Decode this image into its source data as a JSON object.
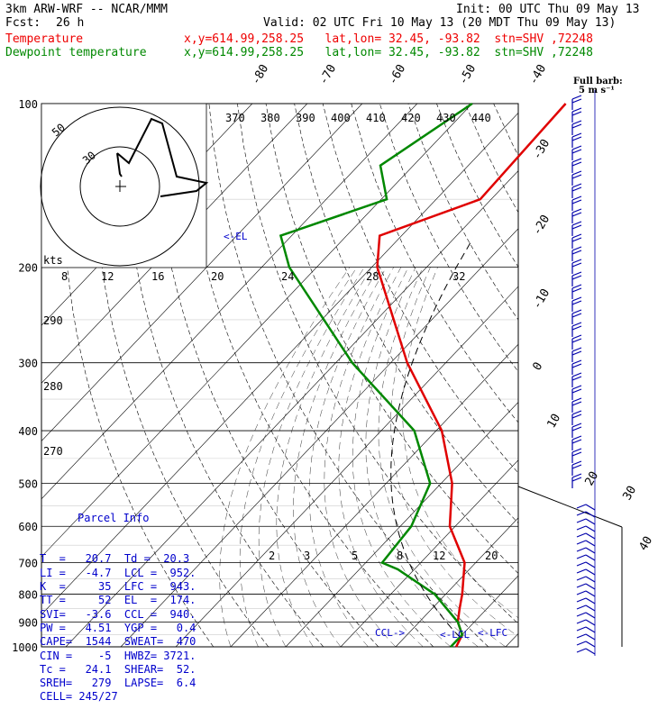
{
  "header": {
    "model": "3km ARW-WRF -- NCAR/MMM",
    "init": "Init: 00 UTC Thu 09 May 13",
    "fcst_label": "Fcst:",
    "fcst_value": "26 h",
    "valid": "Valid: 02 UTC Fri 10 May 13 (20 MDT Thu 09 May 13)",
    "temp_label": "Temperature",
    "temp_info": "x,y=614.99,258.25   lat,lon= 32.45, -93.82  stn=SHV ,72248",
    "dew_label": "Dewpoint temperature",
    "dew_info": "x,y=614.99,258.25   lat,lon= 32.45, -93.82  stn=SHV ,72248"
  },
  "colors": {
    "temperature": "#e00000",
    "dewpoint": "#008800",
    "barbs": "#0000aa",
    "parcel": "#0000cc"
  },
  "full_barb_line1": "Full barb:",
  "full_barb_line2": "5 m s⁻¹",
  "el_marker": "<-EL",
  "lcl_labels": {
    "ccl": "CCL->",
    "lcl": "<-LCL",
    "lfc": "<-LFC"
  },
  "parcel_info": {
    "title": "Parcel Info",
    "lines": [
      "T  =   20.7  Td =  20.3",
      "LI =   -4.7  LCL =  952.",
      "K  =     35  LFC =  943.",
      "TT =     52  EL  =  174.",
      "SVI=   -3.6  CCL =  940.",
      "PW =   4.51  YGP =   0.4",
      "CAPE=  1544  SWEAT=  470",
      "CIN =    -5  HWBZ= 3721.",
      "Tc =   24.1  SHEAR=  52.",
      "SREH=   279  LAPSE=  6.4",
      "CELL= 245/27"
    ]
  },
  "hodograph": {
    "units": "kts",
    "ring_labels": [
      "50",
      "30"
    ]
  },
  "chart_data": {
    "type": "line",
    "title": "Skew-T log-P sounding",
    "yaxis_pressure_labels": [
      "100",
      "200",
      "300",
      "400",
      "500",
      "600",
      "700",
      "800",
      "900",
      "1000"
    ],
    "pressure_levels": [
      100,
      200,
      300,
      400,
      500,
      600,
      700,
      800,
      900,
      1000
    ],
    "isotherm_labels": [
      "-80",
      "-70",
      "-60",
      "-50",
      "-40",
      "-30",
      "-20",
      "-10",
      "0",
      "10",
      "20",
      "30",
      "40"
    ],
    "theta_labels": [
      "370",
      "380",
      "390",
      "400",
      "410",
      "420",
      "430",
      "440"
    ],
    "theta_left_labels": [
      "290",
      "280",
      "270"
    ],
    "mixing_ratio_labels_top": [
      "8",
      "12",
      "16",
      "20",
      "24",
      "28",
      "32"
    ],
    "mixing_ratio_labels_low": [
      "2",
      "3",
      "5",
      "8",
      "12",
      "20"
    ],
    "series": [
      {
        "name": "Temperature",
        "color": "#e00000",
        "points": [
          [
            100,
            -53
          ],
          [
            150,
            -52
          ],
          [
            175,
            -64
          ],
          [
            200,
            -59
          ],
          [
            300,
            -37
          ],
          [
            400,
            -19
          ],
          [
            500,
            -8
          ],
          [
            600,
            -1
          ],
          [
            700,
            8
          ],
          [
            800,
            13
          ],
          [
            850,
            15
          ],
          [
            900,
            17
          ],
          [
            950,
            20
          ],
          [
            1000,
            21
          ]
        ]
      },
      {
        "name": "Dewpoint temperature",
        "color": "#008800",
        "points": [
          [
            100,
            -70
          ],
          [
            130,
            -76
          ],
          [
            150,
            -69
          ],
          [
            175,
            -82
          ],
          [
            200,
            -75
          ],
          [
            300,
            -47
          ],
          [
            400,
            -24
          ],
          [
            500,
            -12
          ],
          [
            600,
            -8
          ],
          [
            700,
            -7
          ],
          [
            720,
            -3
          ],
          [
            800,
            8
          ],
          [
            900,
            17
          ],
          [
            950,
            20
          ],
          [
            1000,
            20
          ]
        ]
      }
    ]
  }
}
